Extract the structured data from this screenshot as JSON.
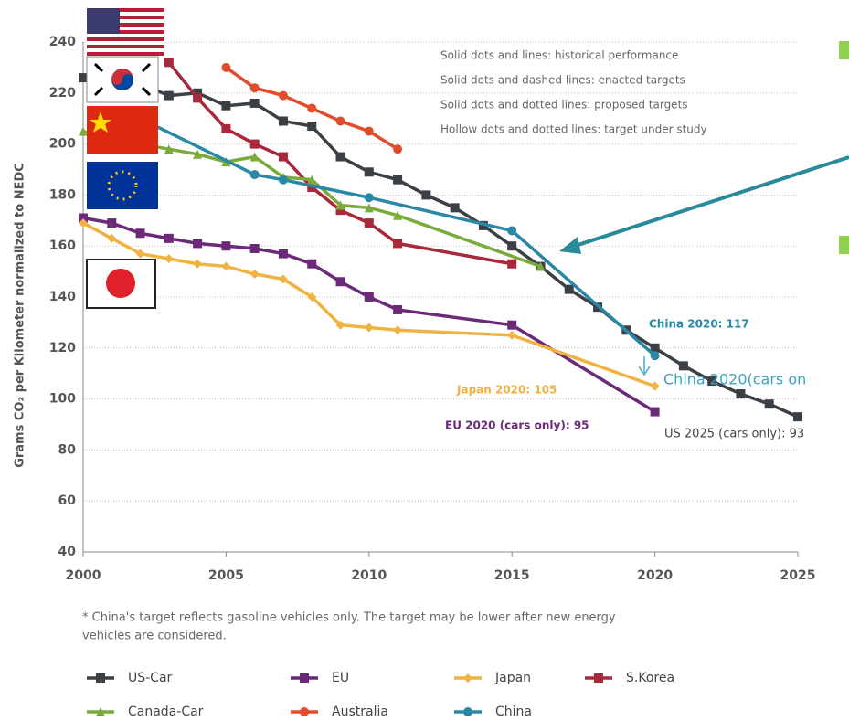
{
  "chart_data": {
    "type": "line",
    "y_label": "Grams CO₂ per Kilometer normalized to NEDC",
    "xlim": [
      2000,
      2025
    ],
    "xticks": [
      2000,
      2005,
      2010,
      2015,
      2020,
      2025
    ],
    "ylim": [
      40,
      240
    ],
    "yticks": [
      40,
      60,
      80,
      100,
      120,
      140,
      160,
      180,
      200,
      220,
      240
    ],
    "grid": true,
    "series": [
      {
        "name": "US-Car",
        "color": "#3b4046",
        "marker": "square",
        "x": [
          2000,
          2001,
          2003,
          2004,
          2005,
          2006,
          2007,
          2008,
          2009,
          2010,
          2011,
          2012,
          2013,
          2014,
          2015,
          2016,
          2017,
          2018,
          2019,
          2020,
          2021,
          2022,
          2023,
          2024,
          2025
        ],
        "values": [
          226,
          228,
          219,
          220,
          215,
          216,
          209,
          207,
          195,
          189,
          186,
          180,
          175,
          168,
          160,
          152,
          143,
          136,
          127,
          120,
          113,
          107,
          102,
          98,
          93
        ]
      },
      {
        "name": "EU",
        "color": "#6b2a78",
        "marker": "square",
        "x": [
          2000,
          2001,
          2002,
          2003,
          2004,
          2005,
          2006,
          2007,
          2008,
          2009,
          2010,
          2011,
          2015,
          2020
        ],
        "values": [
          171,
          169,
          165,
          163,
          161,
          160,
          159,
          157,
          153,
          146,
          140,
          135,
          129,
          95
        ]
      },
      {
        "name": "Japan",
        "color": "#f0b240",
        "marker": "diamond",
        "x": [
          2000,
          2001,
          2002,
          2003,
          2004,
          2005,
          2006,
          2007,
          2008,
          2009,
          2010,
          2011,
          2015,
          2020
        ],
        "values": [
          169,
          163,
          157,
          155,
          153,
          152,
          149,
          147,
          140,
          129,
          128,
          127,
          125,
          105
        ]
      },
      {
        "name": "S.Korea",
        "color": "#a8283c",
        "marker": "square",
        "x": [
          2003,
          2004,
          2005,
          2006,
          2007,
          2008,
          2009,
          2010,
          2011,
          2015
        ],
        "values": [
          232,
          218,
          206,
          200,
          195,
          183,
          174,
          169,
          161,
          153
        ]
      },
      {
        "name": "Canada-Car",
        "color": "#7aab3a",
        "marker": "triangle",
        "x": [
          2000,
          2001,
          2002,
          2003,
          2004,
          2005,
          2006,
          2007,
          2008,
          2009,
          2010,
          2011,
          2016
        ],
        "values": [
          205,
          202,
          200,
          198,
          196,
          193,
          195,
          187,
          186,
          176,
          175,
          172,
          152
        ]
      },
      {
        "name": "Australia",
        "color": "#e24c2c",
        "marker": "circle",
        "x": [
          2005,
          2006,
          2007,
          2008,
          2009,
          2010,
          2011
        ],
        "values": [
          230,
          222,
          219,
          214,
          209,
          205,
          198
        ]
      },
      {
        "name": "China",
        "color": "#2a88a6",
        "marker": "circle",
        "x": [
          2002,
          2006,
          2007,
          2010,
          2015,
          2020
        ],
        "values": [
          210,
          188,
          186,
          179,
          166,
          117
        ]
      }
    ],
    "annotations": [
      "Solid dots and lines: historical performance",
      "Solid dots and dashed lines: enacted targets",
      "Solid dots and dotted lines: proposed targets",
      "Hollow dots and dotted lines: target under study",
      "China 2020: 117",
      "China 2020(cars on",
      "Japan 2020: 105",
      "EU 2020 (cars only): 95",
      "US 2025 (cars only): 93"
    ],
    "footnote": [
      "* China's target reflects gasoline vehicles only. The target may be lower after new energy",
      "vehicles are considered."
    ]
  }
}
